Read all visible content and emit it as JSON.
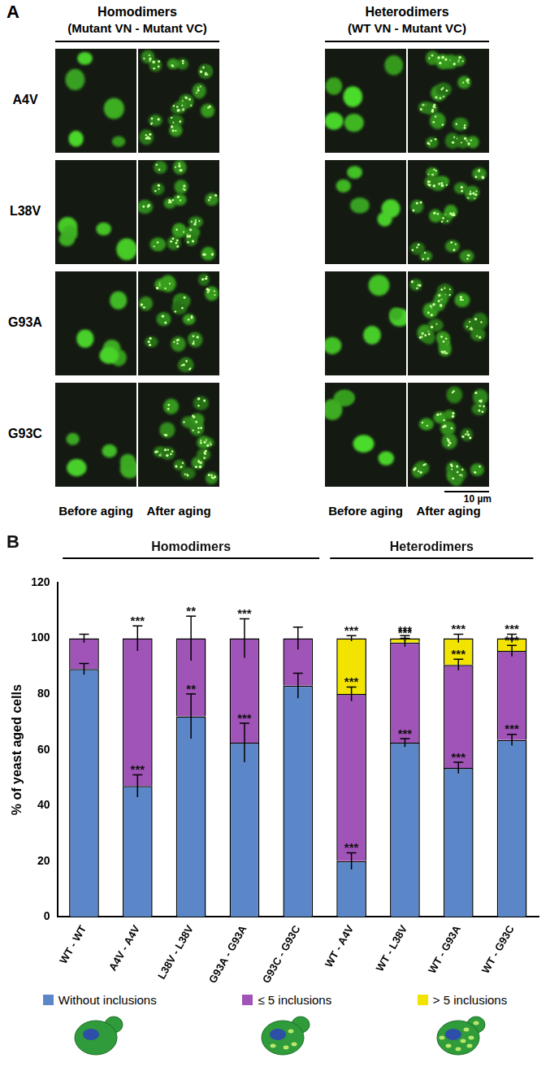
{
  "panel_a": {
    "label": "A",
    "groups": [
      {
        "title": "Homodimers",
        "subtitle": "(Mutant VN - Mutant VC)"
      },
      {
        "title": "Heterodimers",
        "subtitle": "(WT VN - Mutant VC)"
      }
    ],
    "rows": [
      "A4V",
      "L38V",
      "G93A",
      "G93C"
    ],
    "columns": [
      "Before aging",
      "After aging"
    ],
    "scale_bar": "10 µm"
  },
  "chart_data": {
    "type": "bar",
    "panel_label": "B",
    "stacked": true,
    "grid": false,
    "y_label": "% of yeast aged cells",
    "categories": [
      "WT - WT",
      "A4V - A4V",
      "L38V - L38V",
      "G93A - G93A",
      "G93C - G93C",
      "WT - A4V",
      "WT - L38V",
      "WT - G93A",
      "WT - G93C"
    ],
    "groups": [
      {
        "label": "Homodimers",
        "from": 0,
        "to": 4
      },
      {
        "label": "Heterodimers",
        "from": 5,
        "to": 8
      }
    ],
    "ylim": [
      0,
      120
    ],
    "yticks": [
      0,
      20,
      40,
      60,
      80,
      100,
      120
    ],
    "series": [
      {
        "name": "Without inclusions",
        "color": "#5b87c9",
        "values": [
          89,
          47,
          72,
          62.5,
          83,
          20,
          62.5,
          53.5,
          63.5
        ],
        "errors": [
          2,
          4,
          8,
          7,
          4.5,
          3,
          1.5,
          2,
          2
        ],
        "significance": [
          null,
          "***",
          "**",
          "***",
          null,
          "***",
          "***",
          "***",
          "***"
        ]
      },
      {
        "name": "≤ 5 inclusions",
        "color": "#a054b8",
        "values": [
          11,
          53,
          28,
          37.5,
          17,
          60,
          36,
          37,
          32
        ],
        "errors": [
          1.5,
          4.5,
          8,
          7,
          4,
          2.5,
          1.5,
          2,
          2
        ],
        "significance": [
          null,
          null,
          null,
          null,
          null,
          "***",
          "***",
          "***",
          "***"
        ]
      },
      {
        "name": "> 5 inclusions",
        "color": "#f2e400",
        "values": [
          0,
          0,
          0,
          0,
          0,
          20,
          1.5,
          9.5,
          4.5
        ],
        "errors": [
          null,
          null,
          null,
          null,
          null,
          1,
          1,
          1.5,
          1.5
        ],
        "significance": [
          null,
          "***",
          "**",
          "***",
          null,
          "***",
          "***",
          "***",
          "***"
        ]
      }
    ]
  }
}
